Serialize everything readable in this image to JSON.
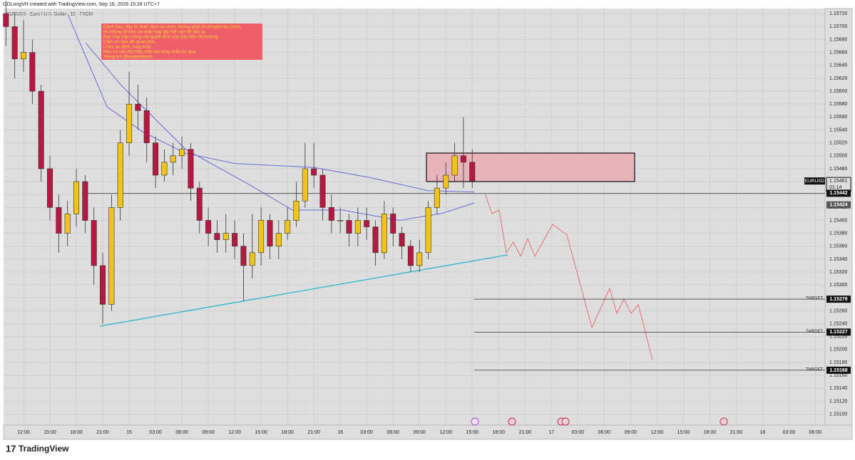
{
  "chart_data": {
    "type": "candlestick",
    "header": "GDLongVH created with TradingView.com, Sep 16, 2026 15:28 UTC+7",
    "title": "EURUSD · Euro / U.S. Dollar · 15 · FXCM",
    "brand": "TradingView",
    "up_color": "#f2c418",
    "down_color": "#b8173f",
    "x": [
      -2,
      -1,
      0,
      1,
      2,
      3,
      4,
      5,
      6,
      7,
      8,
      9,
      10,
      11,
      12,
      13,
      14,
      15,
      16,
      17,
      18,
      19,
      20,
      21,
      22,
      23,
      24,
      25,
      26,
      27,
      28,
      29,
      30,
      31,
      32,
      33,
      34,
      35,
      36,
      37,
      38,
      39,
      40,
      41,
      42,
      43,
      44,
      45,
      46,
      47,
      48,
      49,
      50,
      51
    ],
    "open": [
      1.1572,
      1.157,
      1.1565,
      1.1566,
      1.156,
      1.1548,
      1.1542,
      1.1538,
      1.1541,
      1.1546,
      1.154,
      1.1533,
      1.1527,
      1.1542,
      1.1552,
      1.1558,
      1.1557,
      1.1552,
      1.1547,
      1.1549,
      1.155,
      1.1551,
      1.1545,
      1.154,
      1.1538,
      1.1537,
      1.1538,
      1.1536,
      1.1533,
      1.1535,
      1.154,
      1.1536,
      1.1538,
      1.154,
      1.1543,
      1.1548,
      1.1547,
      1.1542,
      1.154,
      1.154,
      1.1538,
      1.154,
      1.1539,
      1.1535,
      1.1541,
      1.1538,
      1.1536,
      1.1533,
      1.1535,
      1.1542,
      1.1545,
      1.1547,
      1.155,
      1.1549
    ],
    "high": [
      1.1574,
      1.1572,
      1.1571,
      1.1568,
      1.1561,
      1.155,
      1.1544,
      1.1543,
      1.1548,
      1.1547,
      1.1542,
      1.1535,
      1.1544,
      1.1554,
      1.1563,
      1.1561,
      1.1559,
      1.1553,
      1.1551,
      1.1552,
      1.1553,
      1.1552,
      1.1546,
      1.1542,
      1.154,
      1.1541,
      1.154,
      1.1538,
      1.1541,
      1.1542,
      1.1541,
      1.154,
      1.1542,
      1.1546,
      1.1552,
      1.1552,
      1.1548,
      1.1544,
      1.1542,
      1.1541,
      1.1542,
      1.1542,
      1.154,
      1.1543,
      1.1542,
      1.1539,
      1.1537,
      1.1537,
      1.1543,
      1.1547,
      1.1549,
      1.1552,
      1.1556,
      1.1551
    ],
    "low": [
      1.1567,
      1.1562,
      1.1563,
      1.1558,
      1.1546,
      1.154,
      1.1535,
      1.1536,
      1.1539,
      1.1538,
      1.153,
      1.1524,
      1.1526,
      1.154,
      1.155,
      1.1554,
      1.1549,
      1.1545,
      1.1546,
      1.1547,
      1.1548,
      1.1543,
      1.1538,
      1.1536,
      1.1535,
      1.1535,
      1.1534,
      1.15275,
      1.1531,
      1.1533,
      1.1534,
      1.1534,
      1.1537,
      1.1539,
      1.1542,
      1.1545,
      1.154,
      1.1538,
      1.1538,
      1.1536,
      1.1536,
      1.1537,
      1.1533,
      1.1534,
      1.1536,
      1.1534,
      1.1532,
      1.1532,
      1.1534,
      1.1541,
      1.1544,
      1.1546,
      1.1545,
      1.1545
    ],
    "close": [
      1.157,
      1.1565,
      1.1566,
      1.156,
      1.1548,
      1.1542,
      1.1538,
      1.1541,
      1.1546,
      1.154,
      1.1533,
      1.1527,
      1.1542,
      1.1552,
      1.1558,
      1.1557,
      1.1552,
      1.1547,
      1.1549,
      1.155,
      1.1551,
      1.1545,
      1.154,
      1.1538,
      1.1537,
      1.1538,
      1.1536,
      1.1533,
      1.1535,
      1.154,
      1.1536,
      1.1538,
      1.154,
      1.1543,
      1.1548,
      1.1547,
      1.1542,
      1.154,
      1.154,
      1.1538,
      1.154,
      1.1539,
      1.1535,
      1.1541,
      1.1538,
      1.1536,
      1.1533,
      1.1535,
      1.1542,
      1.1545,
      1.1547,
      1.155,
      1.1549,
      1.15461
    ],
    "moving_averages": [
      {
        "color": "#6a6ad8",
        "x": [
          5.03,
          9.49,
          13.54,
          18.41,
          24.08,
          33,
          39.49,
          45.98,
          51.24
        ],
        "values": [
          1.15719,
          1.15576,
          1.15537,
          1.15504,
          1.15488,
          1.15482,
          1.15466,
          1.15446,
          1.15444
        ]
      },
      {
        "color": "#6a6ad8",
        "x": [
          7.05,
          11.11,
          18.41,
          25.7,
          30.57,
          36.24,
          42.73,
          47.6,
          51.24
        ],
        "values": [
          1.15675,
          1.15609,
          1.1551,
          1.15455,
          1.15416,
          1.15416,
          1.154,
          1.15411,
          1.15427
        ]
      }
    ],
    "xlim": [
      -2.27,
      91.1
    ],
    "xticks": [
      {
        "value": 0,
        "label": "12:00"
      },
      {
        "value": 3,
        "label": "15:00"
      },
      {
        "value": 6,
        "label": "18:00"
      },
      {
        "value": 9,
        "label": "21:00"
      },
      {
        "value": 12,
        "label": "15"
      },
      {
        "value": 15,
        "label": "03:00"
      },
      {
        "value": 18,
        "label": "06:00"
      },
      {
        "value": 21,
        "label": "09:00"
      },
      {
        "value": 24,
        "label": "12:00"
      },
      {
        "value": 27,
        "label": "15:00"
      },
      {
        "value": 30,
        "label": "18:00"
      },
      {
        "value": 33,
        "label": "21:00"
      },
      {
        "value": 36,
        "label": "16"
      },
      {
        "value": 39,
        "label": "03:00"
      },
      {
        "value": 42,
        "label": "06:00"
      },
      {
        "value": 45,
        "label": "09:00"
      },
      {
        "value": 48,
        "label": "12:00"
      },
      {
        "value": 51,
        "label": "15:00"
      },
      {
        "value": 54,
        "label": "18:00"
      },
      {
        "value": 57,
        "label": "21:00"
      },
      {
        "value": 60,
        "label": "17"
      },
      {
        "value": 63,
        "label": "03:00"
      },
      {
        "value": 66,
        "label": "06:00"
      },
      {
        "value": 69,
        "label": "09:00"
      },
      {
        "value": 72,
        "label": "12:00"
      },
      {
        "value": 75,
        "label": "15:00"
      },
      {
        "value": 78,
        "label": "18:00"
      },
      {
        "value": 81,
        "label": "21:00"
      },
      {
        "value": 84,
        "label": "18"
      },
      {
        "value": 87,
        "label": "03:00"
      },
      {
        "value": 90,
        "label": "06:00"
      }
    ],
    "ylim": [
      1.15083,
      1.15728
    ],
    "yticks": [
      {
        "value": 1.1572,
        "label": "1.15720"
      },
      {
        "value": 1.157,
        "label": "1.15700"
      },
      {
        "value": 1.1568,
        "label": "1.15680"
      },
      {
        "value": 1.1566,
        "label": "1.15660"
      },
      {
        "value": 1.1564,
        "label": "1.15640"
      },
      {
        "value": 1.1562,
        "label": "1.15620"
      },
      {
        "value": 1.156,
        "label": "1.15600"
      },
      {
        "value": 1.1558,
        "label": "1.15580"
      },
      {
        "value": 1.1556,
        "label": "1.15560"
      },
      {
        "value": 1.1554,
        "label": "1.15540"
      },
      {
        "value": 1.1552,
        "label": "1.15520"
      },
      {
        "value": 1.155,
        "label": "1.15500"
      },
      {
        "value": 1.1548,
        "label": "1.15480"
      },
      {
        "value": 1.1546,
        "label": "1.15460"
      },
      {
        "value": 1.1544,
        "label": "1.15440"
      },
      {
        "value": 1.1542,
        "label": "1.15420"
      },
      {
        "value": 1.154,
        "label": "1.15400"
      },
      {
        "value": 1.1538,
        "label": "1.15380"
      },
      {
        "value": 1.1536,
        "label": "1.15360"
      },
      {
        "value": 1.1534,
        "label": "1.15340"
      },
      {
        "value": 1.1532,
        "label": "1.15320"
      },
      {
        "value": 1.153,
        "label": "1.15300"
      },
      {
        "value": 1.1528,
        "label": "1.15280"
      },
      {
        "value": 1.1526,
        "label": "1.15260"
      },
      {
        "value": 1.1524,
        "label": "1.15240"
      },
      {
        "value": 1.1522,
        "label": "1.15220"
      },
      {
        "value": 1.152,
        "label": "1.15200"
      },
      {
        "value": 1.1518,
        "label": "1.15180"
      },
      {
        "value": 1.1516,
        "label": "1.15160"
      },
      {
        "value": 1.1514,
        "label": "1.15140"
      },
      {
        "value": 1.1512,
        "label": "1.15120"
      },
      {
        "value": 1.151,
        "label": "1.15100"
      }
    ],
    "symbol": "EURUSD",
    "last_price": 1.15461,
    "countdown": "01:14",
    "level": 1.15442,
    "ma_tag": 1.15424,
    "targets": [
      {
        "label": "TARGET",
        "value": 1.15278
      },
      {
        "label": "TARGET",
        "value": 1.15227
      },
      {
        "label": "TARGET",
        "value": 1.15168
      }
    ],
    "note": [
      "Cảnh báo: đây là nhận định cá nhân, không phải lời khuyên tài chính,",
      "tôi không lôi kéo cá nhân hay tập thể nào đó đầu tư.",
      "Bạn hãy thận trọng với quyết định của bạn trên thị trường.",
      "Cảm ơn bạn đã quan tâm.",
      "Chúc an lành, may mắn.",
      "Nếu có câu hỏi thắc mắc xin lòng nhắn tin qua",
      "Telegram @traderdukich"
    ]
  }
}
